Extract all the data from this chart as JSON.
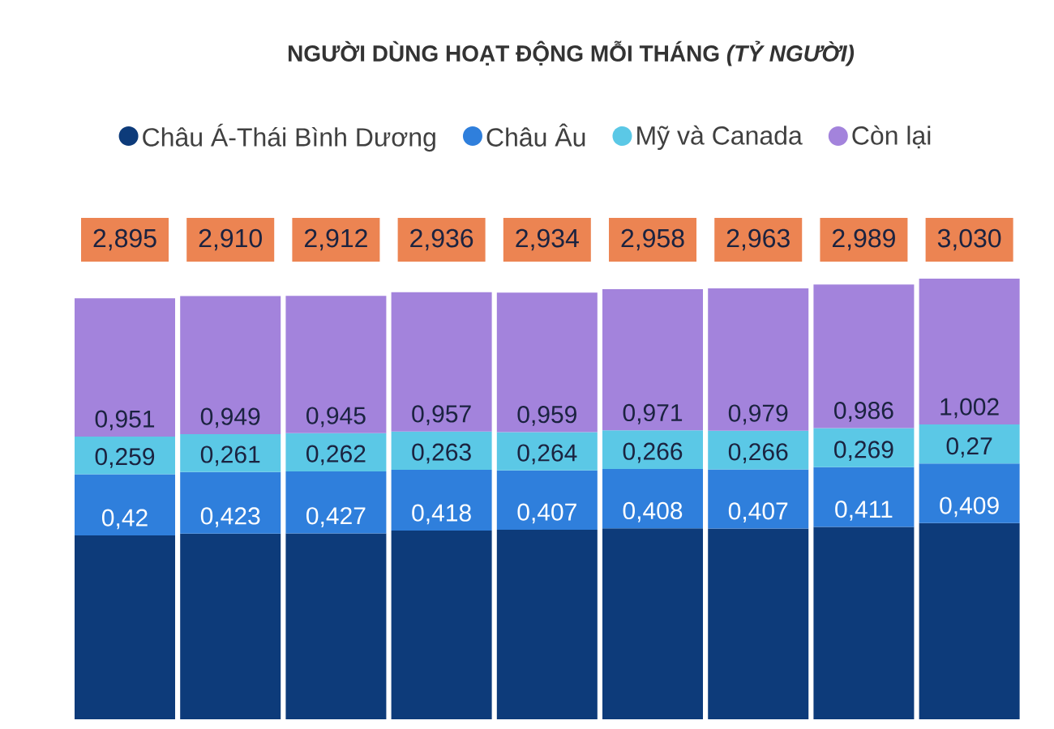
{
  "chart_data": {
    "type": "bar",
    "stacked": true,
    "title": "NGƯỜI DÙNG HOẠT ĐỘNG MỖI THÁNG *(TỶ NGƯỜI)*",
    "categories": [
      null,
      null,
      null,
      null,
      null,
      null,
      null,
      null,
      null
    ],
    "series": [
      {
        "name": "Châu Á-Thái Bình Dương",
        "color": "#0d3b7a",
        "values": [
          1.265,
          1.277,
          1.278,
          1.298,
          1.304,
          1.313,
          1.311,
          1.323,
          1.349
        ]
      },
      {
        "name": "Châu Âu",
        "color": "#2f7fdc",
        "values": [
          0.42,
          0.423,
          0.427,
          0.418,
          0.407,
          0.408,
          0.407,
          0.411,
          0.409
        ],
        "value_labels": [
          "0,42",
          "0,423",
          "0,427",
          "0,418",
          "0,407",
          "0,408",
          "0,407",
          "0,411",
          "0,409"
        ]
      },
      {
        "name": "Mỹ và Canada",
        "color": "#5bc8e6",
        "values": [
          0.259,
          0.261,
          0.262,
          0.263,
          0.264,
          0.266,
          0.266,
          0.269,
          0.27
        ],
        "value_labels": [
          "0,259",
          "0,261",
          "0,262",
          "0,263",
          "0,264",
          "0,266",
          "0,266",
          "0,269",
          "0,27"
        ]
      },
      {
        "name": "Còn lại",
        "color": "#a383dc",
        "values": [
          0.951,
          0.949,
          0.945,
          0.957,
          0.959,
          0.971,
          0.979,
          0.986,
          1.002
        ],
        "value_labels": [
          "0,951",
          "0,949",
          "0,945",
          "0,957",
          "0,959",
          "0,971",
          "0,979",
          "0,986",
          "1,002"
        ]
      }
    ],
    "totals": [
      "2,895",
      "2,910",
      "2,912",
      "2,936",
      "2,934",
      "2,958",
      "2,963",
      "2,989",
      "3,030"
    ],
    "legend": "top"
  }
}
